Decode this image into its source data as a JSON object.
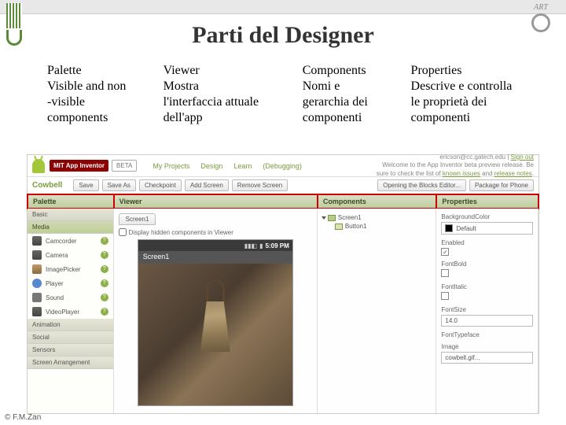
{
  "slide": {
    "title": "Parti del Designer",
    "credit": "© F.M.Zan"
  },
  "labels": {
    "palette": {
      "h": "Palette",
      "t1": "Visible and non",
      "t2": "-visible",
      "t3": "components"
    },
    "viewer": {
      "h": "Viewer",
      "t1": "Mostra",
      "t2": "l'interfaccia attuale",
      "t3": "dell'app"
    },
    "components": {
      "h": "Components",
      "t1": "Nomi e",
      "t2": "gerarchia dei",
      "t3": "componenti"
    },
    "properties": {
      "h": "Properties",
      "t1": "Descrive e controlla",
      "t2": "le proprietà dei",
      "t3": "componenti"
    }
  },
  "ai": {
    "brand": "MIT App Inventor",
    "beta": "BETA",
    "nav": {
      "projects": "My Projects",
      "design": "Design",
      "learn": "Learn",
      "debug": "(Debugging)"
    },
    "welcome1": "Welcome to the App Inventor beta preview release. Be",
    "welcome2": "sure to check the list of",
    "known": "known issues",
    "and": "and",
    "release": "release notes",
    "signout": "Sign out",
    "email": "ericson@cc.gatech.edu",
    "project": "Cowbell",
    "buttons": {
      "save": "Save",
      "saveas": "Save As",
      "checkpoint": "Checkpoint",
      "addscreen": "Add Screen",
      "removescreen": "Remove Screen",
      "blocks": "Opening the Blocks Editor...",
      "package": "Package for Phone"
    },
    "panels": {
      "palette": "Palette",
      "viewer": "Viewer",
      "components": "Components",
      "properties": "Properties"
    },
    "palette": {
      "basic": "Basic",
      "media": "Media",
      "camcorder": "Camcorder",
      "camera": "Camera",
      "imagepicker": "ImagePicker",
      "player": "Player",
      "sound": "Sound",
      "videoplayer": "VideoPlayer",
      "animation": "Animation",
      "social": "Social",
      "sensors": "Sensors",
      "arrangement": "Screen Arrangement"
    },
    "viewer": {
      "screen": "Screen1",
      "displayhidden": "Display hidden components in Viewer",
      "time": "5:09 PM"
    },
    "components": {
      "screen": "Screen1",
      "button": "Button1"
    },
    "properties": {
      "bgcolor": "BackgroundColor",
      "default": "Default",
      "enabled": "Enabled",
      "fontbold": "FontBold",
      "fontitalic": "FontItalic",
      "fontsize": "FontSize",
      "fontsize_val": "14.0",
      "fonttypeface": "FontTypeface",
      "image": "Image",
      "image_val": "cowbell.gif..."
    }
  }
}
